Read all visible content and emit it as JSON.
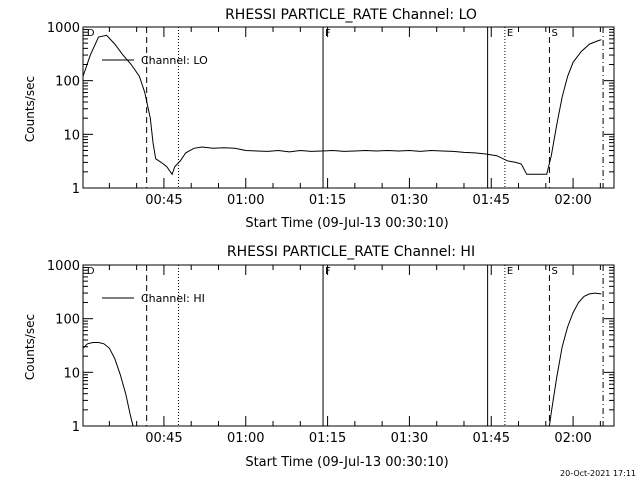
{
  "footer": {
    "timestamp": "20-Oct-2021 17:11"
  },
  "chart_data": [
    {
      "type": "line",
      "title": "RHESSI PARTICLE_RATE Channel: LO",
      "xlabel": "Start Time (09-Jul-13 00:30:10)",
      "ylabel": "Counts/sec",
      "yscale": "log",
      "ylim": [
        1,
        1000
      ],
      "xlim": [
        "00:30:10",
        "02:07:30"
      ],
      "x_ticks": [
        "00:45",
        "01:00",
        "01:15",
        "01:30",
        "01:45",
        "02:00"
      ],
      "y_ticks": [
        "1",
        "10",
        "100",
        "1000"
      ],
      "legend": {
        "position": "top-left",
        "label": "Channel: LO"
      },
      "markers": [
        {
          "time": "00:30:30",
          "label": "D",
          "style": "none"
        },
        {
          "time": "00:41:50",
          "label": "",
          "style": "dashed"
        },
        {
          "time": "00:47:40",
          "label": "",
          "style": "dotted"
        },
        {
          "time": "01:14:10",
          "label": "F",
          "style": "solid"
        },
        {
          "time": "01:44:20",
          "label": "",
          "style": "solid"
        },
        {
          "time": "01:47:30",
          "label": "E",
          "style": "dotted"
        },
        {
          "time": "01:55:40",
          "label": "S",
          "style": "dashed"
        },
        {
          "time": "02:05:30",
          "label": "",
          "style": "dashdot"
        }
      ],
      "series": [
        {
          "name": "Channel: LO",
          "points": [
            [
              "00:30:10",
              120
            ],
            [
              "00:31:30",
              300
            ],
            [
              "00:33:00",
              650
            ],
            [
              "00:34:30",
              700
            ],
            [
              "00:36:00",
              480
            ],
            [
              "00:37:30",
              300
            ],
            [
              "00:39:00",
              200
            ],
            [
              "00:40:30",
              120
            ],
            [
              "00:41:30",
              60
            ],
            [
              "00:42:30",
              20
            ],
            [
              "00:43:00",
              7
            ],
            [
              "00:43:30",
              3.5
            ],
            [
              "00:44:30",
              3.0
            ],
            [
              "00:45:30",
              2.5
            ],
            [
              "00:46:30",
              1.8
            ],
            [
              "00:47:00",
              2.5
            ],
            [
              "00:48:00",
              3.2
            ],
            [
              "00:49:00",
              4.5
            ],
            [
              "00:50:30",
              5.5
            ],
            [
              "00:52:00",
              5.8
            ],
            [
              "00:54:00",
              5.5
            ],
            [
              "00:56:00",
              5.6
            ],
            [
              "00:58:00",
              5.5
            ],
            [
              "01:00:00",
              5.0
            ],
            [
              "01:02:00",
              4.9
            ],
            [
              "01:04:00",
              4.8
            ],
            [
              "01:06:00",
              5.0
            ],
            [
              "01:08:00",
              4.7
            ],
            [
              "01:10:00",
              5.0
            ],
            [
              "01:12:00",
              4.8
            ],
            [
              "01:14:00",
              4.9
            ],
            [
              "01:16:00",
              5.0
            ],
            [
              "01:18:00",
              4.8
            ],
            [
              "01:20:00",
              4.9
            ],
            [
              "01:22:00",
              5.0
            ],
            [
              "01:24:00",
              4.9
            ],
            [
              "01:26:00",
              5.0
            ],
            [
              "01:28:00",
              4.9
            ],
            [
              "01:30:00",
              5.0
            ],
            [
              "01:32:00",
              4.8
            ],
            [
              "01:34:00",
              5.0
            ],
            [
              "01:36:00",
              4.9
            ],
            [
              "01:38:00",
              4.8
            ],
            [
              "01:40:00",
              4.6
            ],
            [
              "01:42:00",
              4.5
            ],
            [
              "01:44:00",
              4.3
            ],
            [
              "01:46:00",
              4.0
            ],
            [
              "01:48:00",
              3.2
            ],
            [
              "01:49:30",
              3.0
            ],
            [
              "01:50:30",
              2.8
            ],
            [
              "01:51:30",
              1.8
            ],
            [
              "01:54:00",
              1.8
            ],
            [
              "01:55:10",
              1.8
            ],
            [
              "01:56:00",
              4.0
            ],
            [
              "01:57:00",
              15
            ],
            [
              "01:58:00",
              50
            ],
            [
              "01:59:00",
              120
            ],
            [
              "02:00:00",
              220
            ],
            [
              "02:01:30",
              350
            ],
            [
              "02:03:00",
              480
            ],
            [
              "02:04:30",
              550
            ],
            [
              "02:05:10",
              580
            ]
          ]
        }
      ]
    },
    {
      "type": "line",
      "title": "RHESSI PARTICLE_RATE Channel: HI",
      "xlabel": "Start Time (09-Jul-13 00:30:10)",
      "ylabel": "Counts/sec",
      "yscale": "log",
      "ylim": [
        1,
        1000
      ],
      "xlim": [
        "00:30:10",
        "02:07:30"
      ],
      "x_ticks": [
        "00:45",
        "01:00",
        "01:15",
        "01:30",
        "01:45",
        "02:00"
      ],
      "y_ticks": [
        "1",
        "10",
        "100",
        "1000"
      ],
      "legend": {
        "position": "top-left",
        "label": "Channel: HI"
      },
      "markers": [
        {
          "time": "00:30:30",
          "label": "D",
          "style": "none"
        },
        {
          "time": "00:41:50",
          "label": "",
          "style": "dashed"
        },
        {
          "time": "00:47:40",
          "label": "",
          "style": "dotted"
        },
        {
          "time": "01:14:10",
          "label": "F",
          "style": "solid"
        },
        {
          "time": "01:44:20",
          "label": "",
          "style": "solid"
        },
        {
          "time": "01:47:30",
          "label": "E",
          "style": "dotted"
        },
        {
          "time": "01:55:40",
          "label": "S",
          "style": "dashed"
        },
        {
          "time": "02:05:30",
          "label": "",
          "style": "dashdot"
        }
      ],
      "series": [
        {
          "name": "Channel: HI",
          "points": [
            [
              "00:30:10",
              28
            ],
            [
              "00:31:00",
              34
            ],
            [
              "00:32:00",
              36
            ],
            [
              "00:33:00",
              36
            ],
            [
              "00:34:00",
              34
            ],
            [
              "00:35:00",
              28
            ],
            [
              "00:36:00",
              18
            ],
            [
              "00:37:00",
              9
            ],
            [
              "00:38:00",
              4
            ],
            [
              "00:38:50",
              1.6
            ],
            [
              "00:39:20",
              1.0
            ]
          ]
        },
        {
          "name": "Channel: HI",
          "points": [
            [
              "01:55:40",
              1.0
            ],
            [
              "01:56:00",
              1.8
            ],
            [
              "01:57:00",
              8
            ],
            [
              "01:58:00",
              30
            ],
            [
              "01:59:00",
              70
            ],
            [
              "02:00:00",
              130
            ],
            [
              "02:01:00",
              200
            ],
            [
              "02:02:00",
              260
            ],
            [
              "02:03:00",
              290
            ],
            [
              "02:04:00",
              300
            ],
            [
              "02:05:10",
              290
            ]
          ]
        }
      ]
    }
  ]
}
